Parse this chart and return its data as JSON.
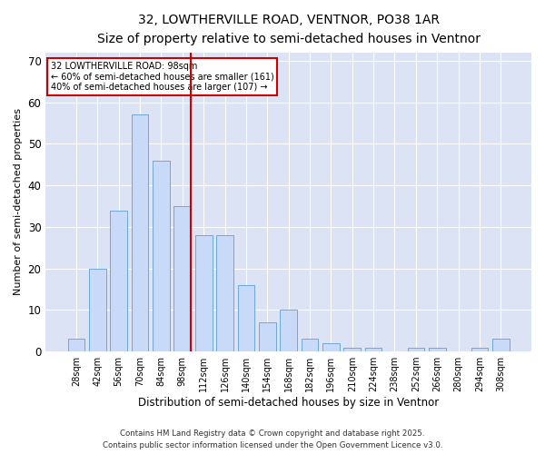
{
  "title_line1": "32, LOWTHERVILLE ROAD, VENTNOR, PO38 1AR",
  "title_line2": "Size of property relative to semi-detached houses in Ventnor",
  "xlabel": "Distribution of semi-detached houses by size in Ventnor",
  "ylabel": "Number of semi-detached properties",
  "categories": [
    "28sqm",
    "42sqm",
    "56sqm",
    "70sqm",
    "84sqm",
    "98sqm",
    "112sqm",
    "126sqm",
    "140sqm",
    "154sqm",
    "168sqm",
    "182sqm",
    "196sqm",
    "210sqm",
    "224sqm",
    "238sqm",
    "252sqm",
    "266sqm",
    "280sqm",
    "294sqm",
    "308sqm"
  ],
  "values": [
    3,
    20,
    34,
    57,
    46,
    35,
    28,
    28,
    16,
    7,
    10,
    3,
    2,
    1,
    1,
    0,
    1,
    1,
    0,
    1,
    3
  ],
  "bar_color": "#c9daf8",
  "bar_edge_color": "#6fa8dc",
  "highlight_index": 5,
  "highlight_line_color": "#cc0000",
  "annotation_text": "32 LOWTHERVILLE ROAD: 98sqm\n← 60% of semi-detached houses are smaller (161)\n40% of semi-detached houses are larger (107) →",
  "annotation_box_color": "#ffffff",
  "annotation_box_edge": "#cc0000",
  "ylim": [
    0,
    72
  ],
  "yticks": [
    0,
    10,
    20,
    30,
    40,
    50,
    60,
    70
  ],
  "background_color": "#dce3f5",
  "grid_color": "#ffffff",
  "footer_line1": "Contains HM Land Registry data © Crown copyright and database right 2025.",
  "footer_line2": "Contains public sector information licensed under the Open Government Licence v3.0."
}
